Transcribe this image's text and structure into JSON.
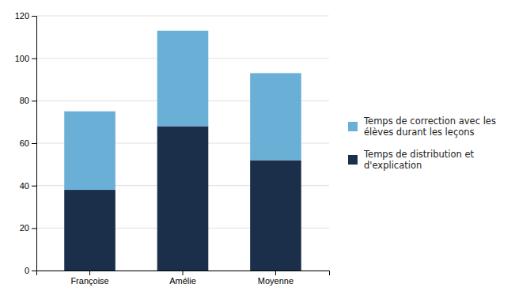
{
  "chart_data": {
    "type": "bar",
    "stacked": true,
    "categories": [
      "Françoise",
      "Amélie",
      "Moyenne"
    ],
    "series": [
      {
        "name": "Temps de distribution et\nd'explication",
        "color": "#1c2f4a",
        "values": [
          38,
          68,
          52
        ]
      },
      {
        "name": "Temps de correction avec les\nélèves durant les leçons",
        "color": "#6aafd6",
        "values": [
          37,
          45,
          41
        ]
      }
    ],
    "ylim": [
      0,
      120
    ],
    "yticks": [
      0,
      20,
      40,
      60,
      80,
      100,
      120
    ],
    "grid": true,
    "legend": "right"
  }
}
